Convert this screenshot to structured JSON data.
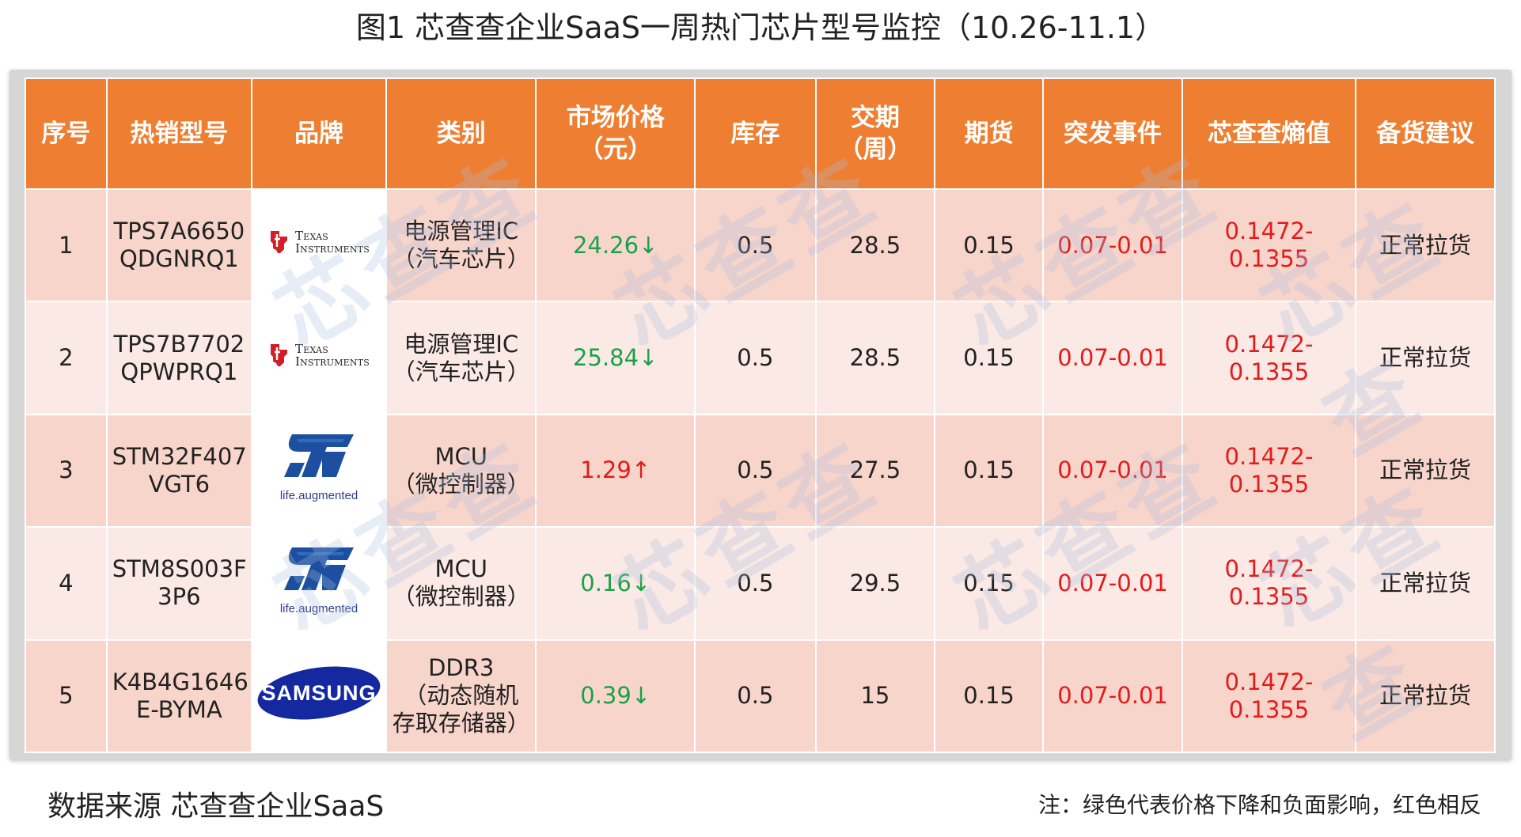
{
  "title": "图1  芯查查企业SaaS一周热门芯片型号监控（10.26-11.1）",
  "watermark": "芯查查",
  "headers": [
    "序号",
    "热销型号",
    "品牌",
    "类别",
    "市场价格\n（元）",
    "库存",
    "交期\n（周）",
    "期货",
    "突发事件",
    "芯查查熵值",
    "备货建议"
  ],
  "rows": [
    {
      "no": "1",
      "model": "TPS7A6650\nQDGNRQ1",
      "brand": "Texas Instruments",
      "category": "电源管理IC\n（汽车芯片）",
      "price": "24.26↓",
      "price_dir": "down",
      "stock": "0.5",
      "lead": "28.5",
      "futures": "0.15",
      "event": "0.07-0.01",
      "entropy": "0.1472-0.1355",
      "advice": "正常拉货"
    },
    {
      "no": "2",
      "model": "TPS7B7702\nQPWPRQ1",
      "brand": "Texas Instruments",
      "category": "电源管理IC\n（汽车芯片）",
      "price": "25.84↓",
      "price_dir": "down",
      "stock": "0.5",
      "lead": "28.5",
      "futures": "0.15",
      "event": "0.07-0.01",
      "entropy": "0.1472-0.1355",
      "advice": "正常拉货"
    },
    {
      "no": "3",
      "model": "STM32F407\nVGT6",
      "brand": "ST",
      "category": "MCU\n（微控制器）",
      "price": "1.29↑",
      "price_dir": "up",
      "stock": "0.5",
      "lead": "27.5",
      "futures": "0.15",
      "event": "0.07-0.01",
      "entropy": "0.1472-0.1355",
      "advice": "正常拉货"
    },
    {
      "no": "4",
      "model": "STM8S003F\n3P6",
      "brand": "ST",
      "category": "MCU\n（微控制器）",
      "price": "0.16↓",
      "price_dir": "down",
      "stock": "0.5",
      "lead": "29.5",
      "futures": "0.15",
      "event": "0.07-0.01",
      "entropy": "0.1472-0.1355",
      "advice": "正常拉货"
    },
    {
      "no": "5",
      "model": "K4B4G1646\nE-BYMA",
      "brand": "SAMSUNG",
      "category": "DDR3\n（动态随机\n存取存储器）",
      "price": "0.39↓",
      "price_dir": "down",
      "stock": "0.5",
      "lead": "15",
      "futures": "0.15",
      "event": "0.07-0.01",
      "entropy": "0.1472-0.1355",
      "advice": "正常拉货"
    }
  ],
  "logos": {
    "ti_line1": "Texas",
    "ti_line2": "Instruments",
    "st_tagline": "life.augmented",
    "samsung": "SAMSUNG"
  },
  "colors": {
    "header_bg": "#ee7f32",
    "row_odd": "#f8d5ca",
    "row_even": "#fae9e4",
    "down": "#1aa14a",
    "up": "#e31b1b"
  },
  "footer": {
    "source": "数据来源  芯查查企业SaaS",
    "note": "注：绿色代表价格下降和负面影响，红色相反"
  }
}
